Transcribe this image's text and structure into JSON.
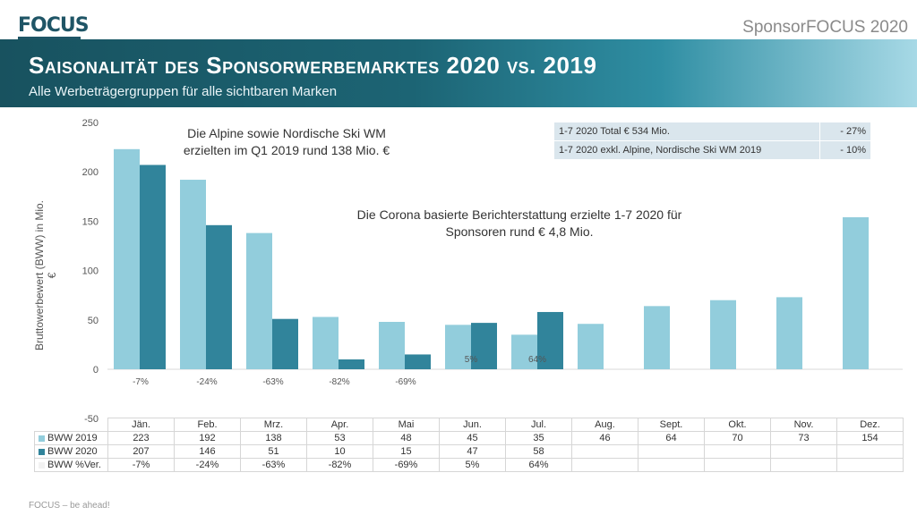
{
  "logo_text": "FOCUS",
  "brand": "SponsorFOCUS 2020",
  "title": "Saisonalität des Sponsorwerbemarktes 2020 vs. 2019",
  "subtitle": "Alle Werbeträgergruppen für alle sichtbaren Marken",
  "annotations": {
    "ski_line1": "Die Alpine sowie Nordische Ski WM",
    "ski_line2": "erzielten im Q1 2019 rund 138 Mio. €",
    "corona_line1": "Die Corona basierte Berichterstattung erzielte 1-7 2020 für",
    "corona_line2": "Sponsoren rund € 4,8 Mio."
  },
  "info_table": [
    {
      "label": "1-7 2020 Total € 534 Mio.",
      "value": "- 27%"
    },
    {
      "label": "1-7 2020 exkl. Alpine, Nordische Ski WM 2019",
      "value": "- 10%"
    }
  ],
  "footer": "FOCUS – be ahead!",
  "colors": {
    "bww2019": "#92cddc",
    "bww2020": "#31849b",
    "gridline": "#d9d9d9",
    "pct_legend": "#f2f2f2"
  },
  "chart_data": {
    "type": "bar",
    "categories": [
      "Jän.",
      "Feb.",
      "Mrz.",
      "Apr.",
      "Mai",
      "Jun.",
      "Jul.",
      "Aug.",
      "Sept.",
      "Okt.",
      "Nov.",
      "Dez."
    ],
    "series": [
      {
        "name": "BWW 2019",
        "values": [
          223,
          192,
          138,
          53,
          48,
          45,
          35,
          46,
          64,
          70,
          73,
          154
        ]
      },
      {
        "name": "BWW 2020",
        "values": [
          207,
          146,
          51,
          10,
          15,
          47,
          58,
          null,
          null,
          null,
          null,
          null
        ]
      },
      {
        "name": "BWW %Ver.",
        "values": [
          "-7%",
          "-24%",
          "-63%",
          "-82%",
          "-69%",
          "5%",
          "64%",
          "",
          "",
          "",
          "",
          ""
        ]
      }
    ],
    "ylabel": "Bruttowerbewert (BWW) in Mio. €",
    "ylim": [
      -50,
      250
    ],
    "yticks": [
      -50,
      0,
      50,
      100,
      150,
      200,
      250
    ],
    "grid": false,
    "legend": "data table below chart"
  }
}
